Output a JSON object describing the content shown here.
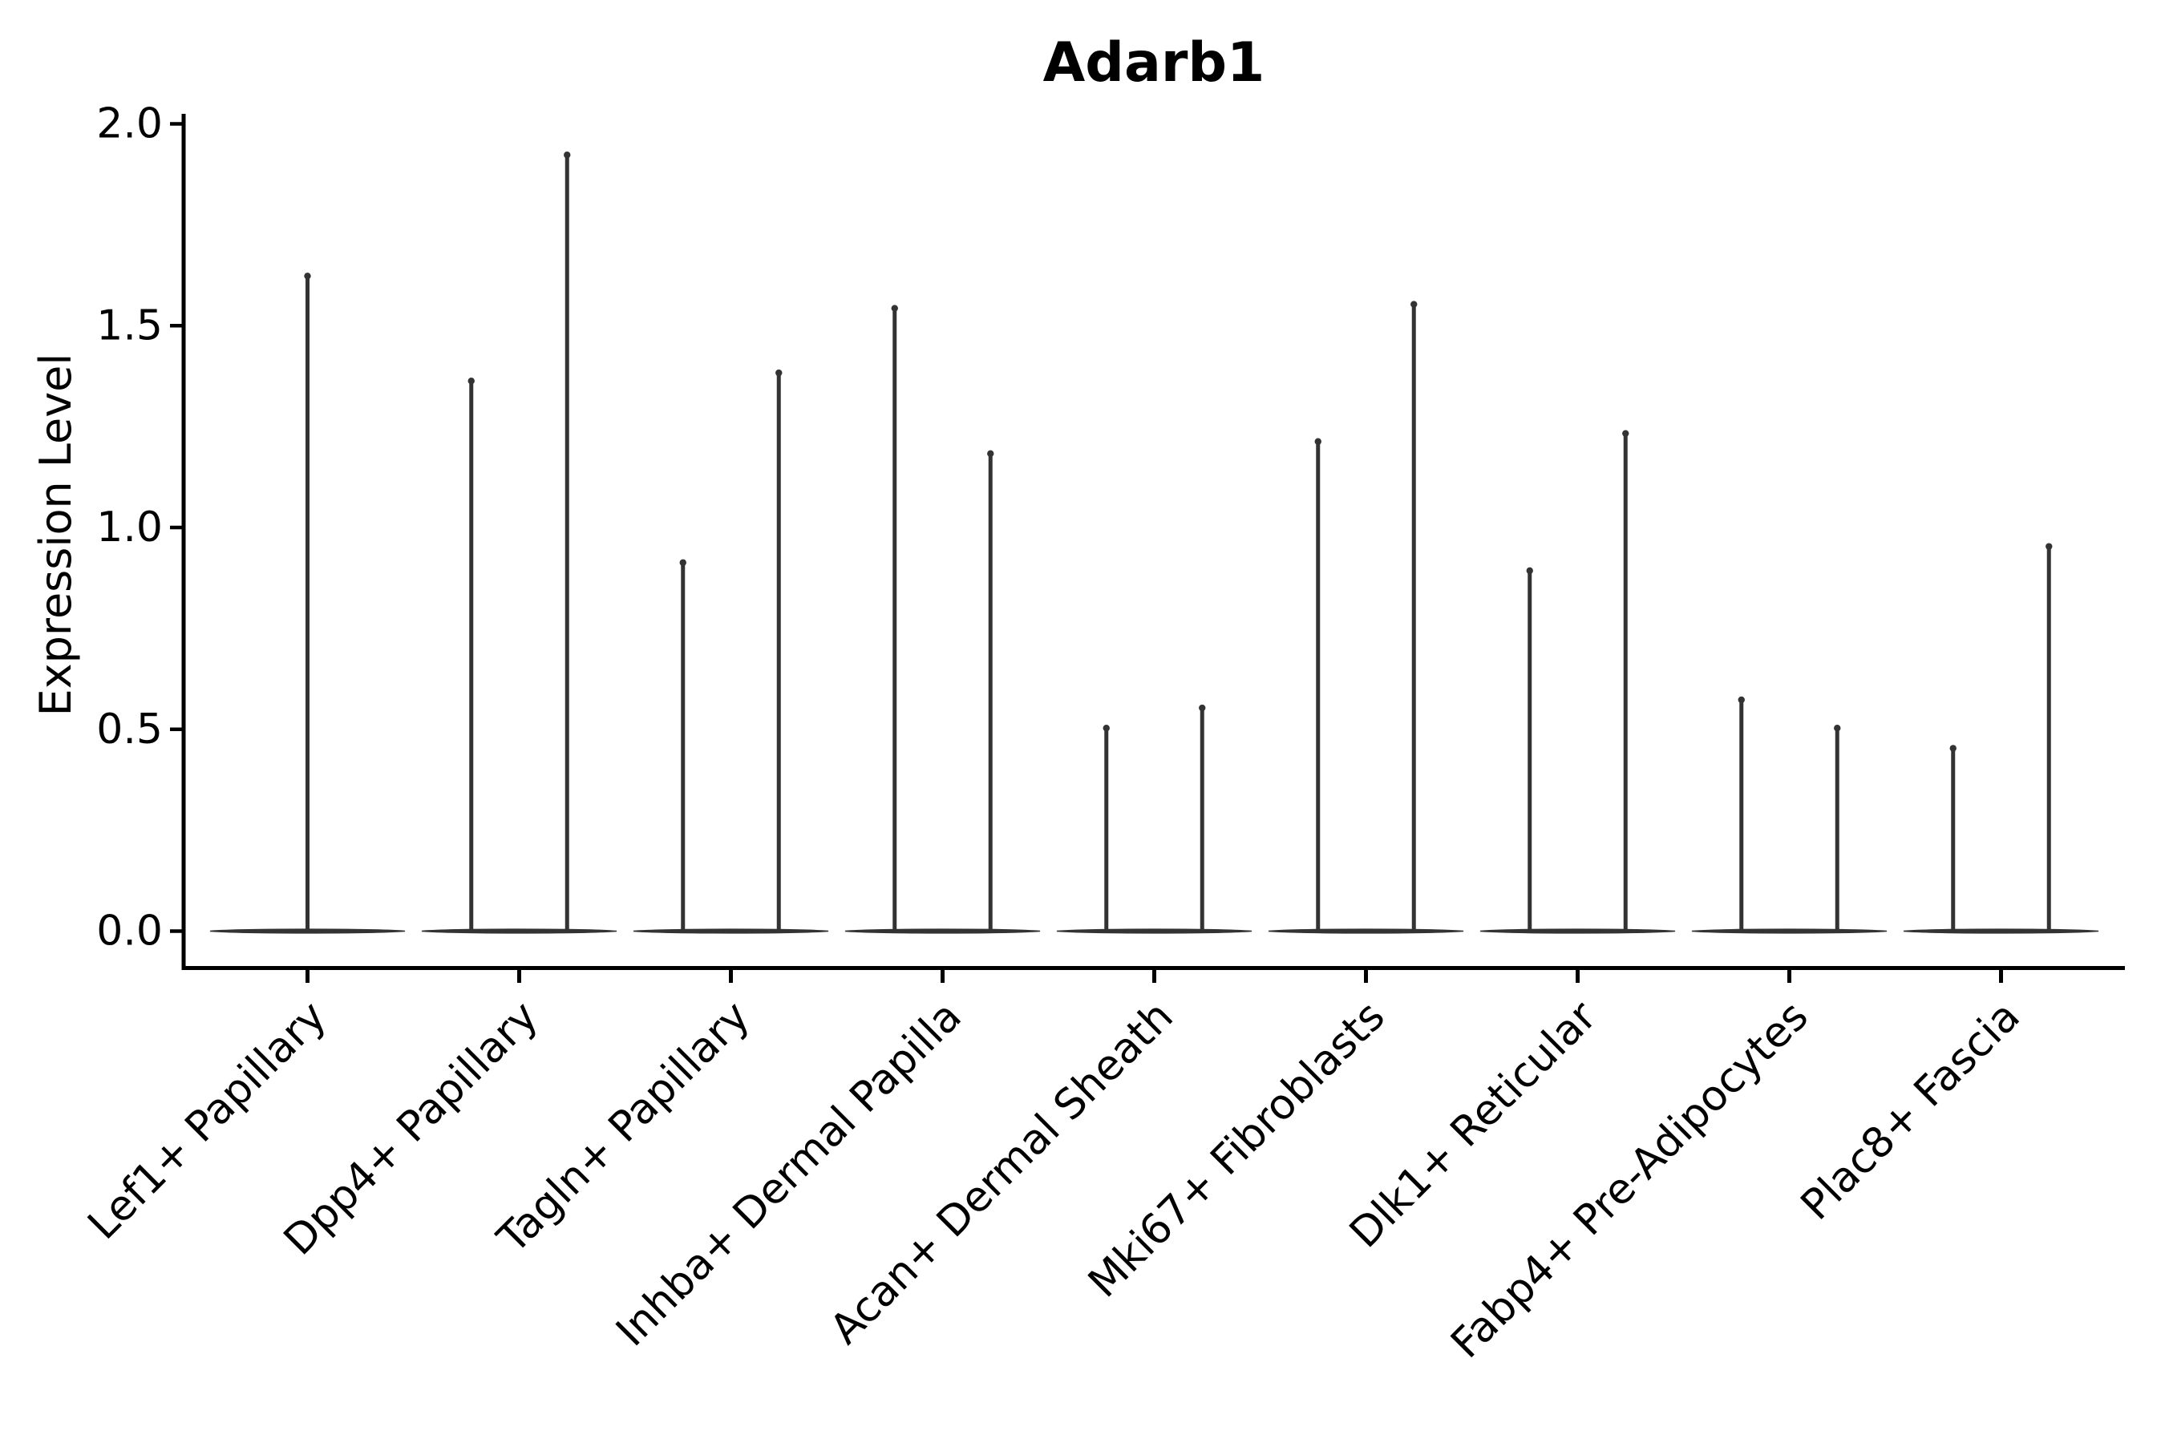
{
  "chart_data": {
    "type": "violin",
    "title": "Adarb1",
    "ylabel": "Expression Level",
    "xlabel": "",
    "ylim": [
      0.0,
      2.0
    ],
    "ytick_values": [
      0.0,
      0.5,
      1.0,
      1.5,
      2.0
    ],
    "ytick_labels": [
      "0.0",
      "0.5",
      "1.0",
      "1.5",
      "2.0"
    ],
    "grid": false,
    "legend": "none",
    "background_color": "#ffffff",
    "violin_color": "#333333",
    "axis_color": "#000000",
    "categories": [
      "Lef1+ Papillary",
      "Dpp4+ Papillary",
      "Tagln+ Papillary",
      "Inhba+ Dermal Papilla",
      "Acan+ Dermal Sheath",
      "Mki67+ Fibroblasts",
      "Dlk1+ Reticular",
      "Fabp4+ Pre-Adipocytes",
      "Plac8+ Fascia"
    ],
    "spike_heights": [
      [
        1.63
      ],
      [
        1.37,
        1.93
      ],
      [
        0.92,
        1.39
      ],
      [
        1.55,
        1.19
      ],
      [
        0.51,
        0.56
      ],
      [
        1.22,
        1.56
      ],
      [
        0.9,
        1.24
      ],
      [
        0.58,
        0.51
      ],
      [
        0.46,
        0.96
      ]
    ],
    "violin_shape_note": "Each violin collapses to a wide flat base at expression 0 with a thin vertical spike up to its maximum value; categories 2-9 contain two adjacent violins, category 1 contains a single full-width violin."
  }
}
